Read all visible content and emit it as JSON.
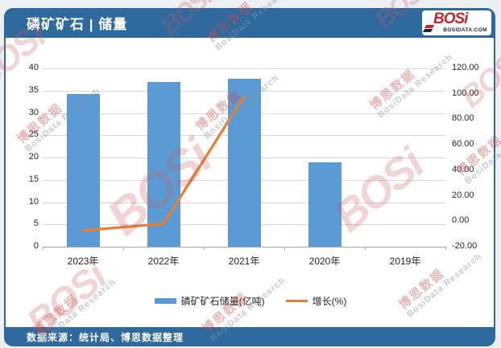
{
  "header": {
    "title": "磷矿矿石 | 储量",
    "logo": {
      "text": "BOSi",
      "site": "BOSIDATA.COM"
    }
  },
  "footer": {
    "source_note": "数据来源：统计局、博思数据整理"
  },
  "watermark": {
    "logo_text": "BOSi",
    "line1": "博思数据",
    "line2": "BosiData Research"
  },
  "colors": {
    "accent_blue": "#2F6A9F",
    "bar_blue": "#5B9BD5",
    "line_orange": "#ED7D31"
  },
  "chart_data": {
    "type": "bar+line combo",
    "categories": [
      "2023年",
      "2022年",
      "2021年",
      "2020年",
      "2019年"
    ],
    "series": [
      {
        "name": "磷矿矿石储量(亿吨)",
        "type": "bar",
        "axis": "left",
        "color": "#5B9BD5",
        "values": [
          34.2,
          36.9,
          37.6,
          19.0,
          null
        ]
      },
      {
        "name": "增长(%)",
        "type": "line",
        "axis": "right",
        "color": "#ED7D31",
        "values": [
          -7.3,
          -1.9,
          97.9,
          null,
          null
        ]
      }
    ],
    "left_axis": {
      "min": 0,
      "max": 40,
      "step": 5,
      "decimals": 0
    },
    "right_axis": {
      "min": -20,
      "max": 120,
      "step": 20,
      "decimals": 2
    },
    "grid": true,
    "legend_position": "bottom"
  }
}
